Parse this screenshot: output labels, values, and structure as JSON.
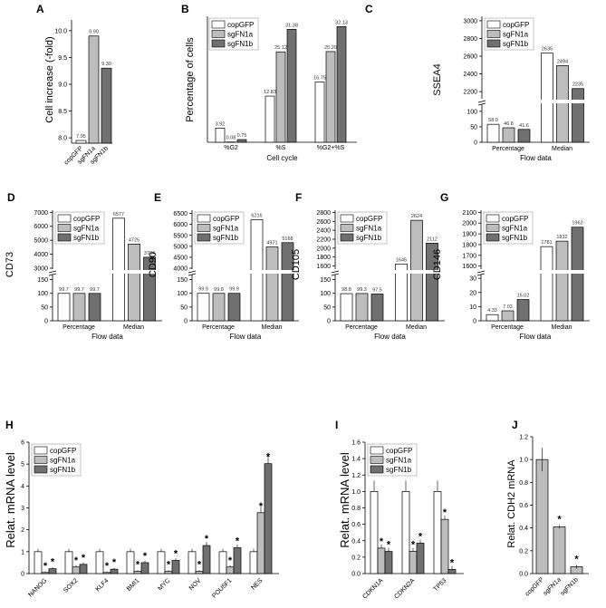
{
  "colors": {
    "copGFP": "#ffffff",
    "sgFN1a": "#bdbdbd",
    "sgFN1b": "#707070",
    "stroke": "#000000"
  },
  "legend": [
    "copGFP",
    "sgFN1a",
    "sgFN1b"
  ],
  "chart_data": [
    {
      "id": "A",
      "panel_label": "A",
      "type": "bar",
      "ylabel": "Cell increase (-fold)",
      "xlabel": "",
      "categories": [
        "copGFP",
        "sgFN1a",
        "sgFN1b"
      ],
      "values": [
        7.95,
        9.9,
        9.3
      ],
      "value_labels": [
        "7.95",
        "9.90",
        "9.30"
      ],
      "ylim": [
        7.9,
        10.2
      ],
      "yticks": [
        "8.0",
        "8.5",
        "9.0",
        "9.5",
        "10.0"
      ]
    },
    {
      "id": "B",
      "panel_label": "B",
      "type": "bar",
      "ylabel": "Percentage of cells",
      "xlabel": "Cell cycle",
      "categories": [
        "%G2",
        "%S",
        "%G2+%S"
      ],
      "series": [
        {
          "name": "copGFP",
          "values": [
            3.92,
            12.83,
            16.75
          ],
          "labels": [
            "3.92",
            "12.83",
            "16.75"
          ]
        },
        {
          "name": "sgFN1a",
          "values": [
            0.08,
            25.12,
            25.2
          ],
          "labels": [
            "0.08",
            "25.12",
            "25.20"
          ]
        },
        {
          "name": "sgFN1b",
          "values": [
            0.75,
            31.38,
            32.13
          ],
          "labels": [
            "0.75",
            "31.38",
            "32.13"
          ]
        }
      ],
      "ylim": [
        0,
        35
      ]
    },
    {
      "id": "C",
      "panel_label": "C",
      "type": "bar",
      "ylabel": "SSEA4",
      "xlabel": "Flow data",
      "categories": [
        "Percentage",
        "Median"
      ],
      "series": [
        {
          "name": "copGFP",
          "values": [
            58.0,
            2635
          ],
          "labels": [
            "58.0",
            "2635"
          ]
        },
        {
          "name": "sgFN1a",
          "values": [
            46.8,
            2494
          ],
          "labels": [
            "46.8",
            "2494"
          ]
        },
        {
          "name": "sgFN1b",
          "values": [
            41.6,
            2235
          ],
          "labels": [
            "41.6",
            "2235"
          ]
        }
      ],
      "yticks_upper": [
        "2200",
        "2400",
        "2600",
        "2800",
        "3000"
      ],
      "yticks_lower": [
        "0",
        "50",
        "100"
      ]
    },
    {
      "id": "D",
      "panel_label": "D",
      "type": "bar",
      "ylabel": "CD73",
      "xlabel": "Flow data",
      "categories": [
        "Percentage",
        "Median"
      ],
      "series": [
        {
          "name": "copGFP",
          "values": [
            99.7,
            6577
          ],
          "labels": [
            "99.7",
            "6577"
          ]
        },
        {
          "name": "sgFN1a",
          "values": [
            99.7,
            4725
          ],
          "labels": [
            "99.7",
            "4725"
          ]
        },
        {
          "name": "sgFN1b",
          "values": [
            99.7,
            3784
          ],
          "labels": [
            "99.7",
            "3784"
          ]
        }
      ],
      "yticks_upper": [
        "3000",
        "4000",
        "5000",
        "6000",
        "7000"
      ],
      "yticks_lower": [
        "0",
        "50",
        "100",
        "150"
      ]
    },
    {
      "id": "E",
      "panel_label": "E",
      "type": "bar",
      "ylabel": "CD90",
      "xlabel": "Flow data",
      "categories": [
        "Percentage",
        "Median"
      ],
      "series": [
        {
          "name": "copGFP",
          "values": [
            99.9,
            6216
          ],
          "labels": [
            "99.9",
            "6216"
          ]
        },
        {
          "name": "sgFN1a",
          "values": [
            99.8,
            4971
          ],
          "labels": [
            "99.8",
            "4971"
          ]
        },
        {
          "name": "sgFN1b",
          "values": [
            99.9,
            5168
          ],
          "labels": [
            "99.9",
            "5168"
          ]
        }
      ],
      "yticks_upper": [
        "4000",
        "4500",
        "5000",
        "5500",
        "6000",
        "6500"
      ],
      "yticks_lower": [
        "0",
        "50",
        "100",
        "150"
      ]
    },
    {
      "id": "F",
      "panel_label": "F",
      "type": "bar",
      "ylabel": "CD105",
      "xlabel": "Flow data",
      "categories": [
        "Percentage",
        "Median"
      ],
      "series": [
        {
          "name": "copGFP",
          "values": [
            98.8,
            1645
          ],
          "labels": [
            "98.8",
            "1645"
          ]
        },
        {
          "name": "sgFN1a",
          "values": [
            99.3,
            2624
          ],
          "labels": [
            "99.3",
            "2624"
          ]
        },
        {
          "name": "sgFN1b",
          "values": [
            97.5,
            2112
          ],
          "labels": [
            "97.5",
            "2112"
          ]
        }
      ],
      "yticks_upper": [
        "1600",
        "1800",
        "2000",
        "2200",
        "2400",
        "2600",
        "2800"
      ],
      "yticks_lower": [
        "0",
        "50",
        "100",
        "150"
      ]
    },
    {
      "id": "G",
      "panel_label": "G",
      "type": "bar",
      "ylabel": "CD146",
      "xlabel": "Flow data",
      "categories": [
        "Percentage",
        "Median"
      ],
      "series": [
        {
          "name": "copGFP",
          "values": [
            4.33,
            1781
          ],
          "labels": [
            "4.33",
            "1781"
          ]
        },
        {
          "name": "sgFN1a",
          "values": [
            7.03,
            1832
          ],
          "labels": [
            "7.03",
            "1832"
          ]
        },
        {
          "name": "sgFN1b",
          "values": [
            15.02,
            1962
          ],
          "labels": [
            "15.02",
            "1962"
          ]
        }
      ],
      "yticks_upper": [
        "1600",
        "1700",
        "1800",
        "1900",
        "2000",
        "2100"
      ],
      "yticks_lower": [
        "0",
        "10",
        "20",
        "30"
      ]
    },
    {
      "id": "H",
      "panel_label": "H",
      "type": "bar",
      "ylabel": "Relat. mRNA level",
      "xlabel": "",
      "categories": [
        "NANOG",
        "SOX2",
        "KLF4",
        "BMI1",
        "MYC",
        "NOV",
        "POU5F1",
        "NES"
      ],
      "series": [
        {
          "name": "copGFP",
          "values": [
            1,
            1,
            1,
            1,
            1,
            1,
            1,
            1
          ]
        },
        {
          "name": "sgFN1a",
          "values": [
            0.05,
            0.3,
            0.05,
            0.1,
            0.1,
            0.1,
            0.3,
            2.78
          ]
        },
        {
          "name": "sgFN1b",
          "values": [
            0.22,
            0.42,
            0.2,
            0.5,
            0.6,
            1.28,
            1.18,
            5.02
          ]
        }
      ],
      "ylim": [
        0,
        6
      ],
      "yticks": [
        "0",
        "1",
        "2",
        "3",
        "4",
        "5",
        "6"
      ]
    },
    {
      "id": "I",
      "panel_label": "I",
      "type": "bar",
      "ylabel": "Relat. mRNA level",
      "xlabel": "",
      "categories": [
        "CDKN1A",
        "CDKN2A",
        "TP53"
      ],
      "series": [
        {
          "name": "copGFP",
          "values": [
            1.0,
            1.0,
            1.0
          ]
        },
        {
          "name": "sgFN1a",
          "values": [
            0.31,
            0.27,
            0.66
          ]
        },
        {
          "name": "sgFN1b",
          "values": [
            0.27,
            0.37,
            0.05
          ]
        }
      ],
      "ylim": [
        0,
        1.6
      ],
      "yticks": [
        "0.0",
        "0.2",
        "0.4",
        "0.6",
        "0.8",
        "1.0",
        "1.2",
        "1.4",
        "1.6"
      ]
    },
    {
      "id": "J",
      "panel_label": "J",
      "type": "bar",
      "ylabel": "Relat. CDH2 mRNA",
      "xlabel": "",
      "categories": [
        "copGFP",
        "sgFN1a",
        "sgFN1b"
      ],
      "values": [
        1.0,
        0.41,
        0.06
      ],
      "ylim": [
        0,
        1.2
      ],
      "yticks": [
        "0.0",
        "0.2",
        "0.4",
        "0.6",
        "0.8",
        "1.0",
        "1.2"
      ]
    }
  ]
}
